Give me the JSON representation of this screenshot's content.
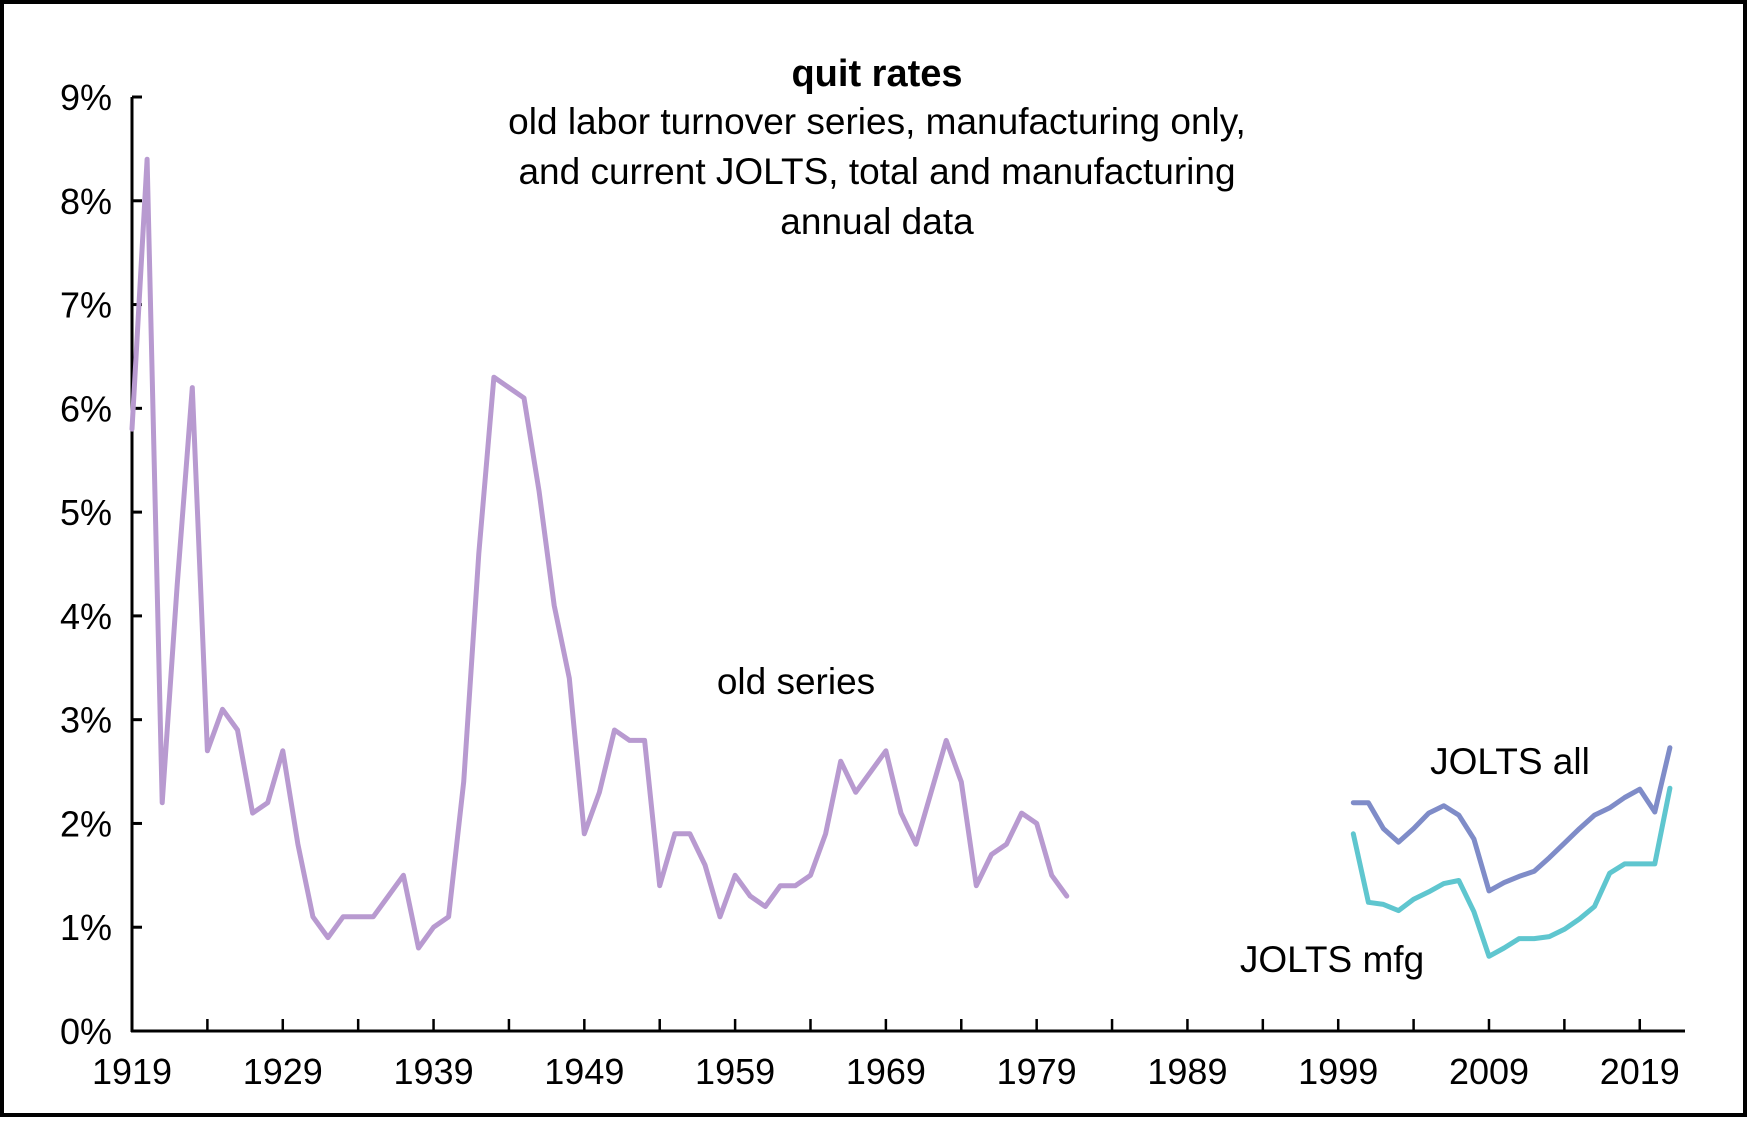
{
  "chart_data": {
    "type": "line",
    "title": "quit rates",
    "subtitle_lines": [
      "old labor turnover series, manufacturing only,",
      "and current JOLTS, total and manufacturing",
      "annual data"
    ],
    "xlabel": "",
    "ylabel": "",
    "xlim": [
      1919,
      2022
    ],
    "ylim": [
      0,
      9
    ],
    "x_ticks": [
      1919,
      1929,
      1939,
      1949,
      1959,
      1969,
      1979,
      1989,
      1999,
      2009,
      2019
    ],
    "y_ticks": [
      0,
      1,
      2,
      3,
      4,
      5,
      6,
      7,
      8,
      9
    ],
    "y_tick_labels": [
      "0%",
      "1%",
      "2%",
      "3%",
      "4%",
      "5%",
      "6%",
      "7%",
      "8%",
      "9%"
    ],
    "grid": false,
    "series": [
      {
        "name": "old series",
        "color": "#b89ad0",
        "x": [
          1919,
          1920,
          1921,
          1922,
          1923,
          1924,
          1925,
          1926,
          1927,
          1928,
          1929,
          1930,
          1931,
          1932,
          1933,
          1934,
          1935,
          1936,
          1937,
          1938,
          1939,
          1940,
          1941,
          1942,
          1943,
          1944,
          1945,
          1946,
          1947,
          1948,
          1949,
          1950,
          1951,
          1952,
          1953,
          1954,
          1955,
          1956,
          1957,
          1958,
          1959,
          1960,
          1961,
          1962,
          1963,
          1964,
          1965,
          1966,
          1967,
          1968,
          1969,
          1970,
          1971,
          1972,
          1973,
          1974,
          1975,
          1976,
          1977,
          1978,
          1979,
          1980,
          1981
        ],
        "values": [
          5.8,
          8.4,
          2.2,
          4.3,
          6.2,
          2.7,
          3.1,
          2.9,
          2.1,
          2.2,
          2.7,
          1.8,
          1.1,
          0.9,
          1.1,
          1.1,
          1.1,
          1.3,
          1.5,
          0.8,
          1.0,
          1.1,
          2.4,
          4.6,
          6.3,
          6.2,
          6.1,
          5.2,
          4.1,
          3.4,
          1.9,
          2.3,
          2.9,
          2.8,
          2.8,
          1.4,
          1.9,
          1.9,
          1.6,
          1.1,
          1.5,
          1.3,
          1.2,
          1.4,
          1.4,
          1.5,
          1.9,
          2.6,
          2.3,
          2.5,
          2.7,
          2.1,
          1.8,
          2.3,
          2.8,
          2.4,
          1.4,
          1.7,
          1.8,
          2.1,
          2.0,
          1.5,
          1.3
        ]
      },
      {
        "name": "JOLTS all",
        "color": "#7f8cc8",
        "x": [
          2000,
          2001,
          2002,
          2003,
          2004,
          2005,
          2006,
          2007,
          2008,
          2009,
          2010,
          2011,
          2012,
          2013,
          2014,
          2015,
          2016,
          2017,
          2018,
          2019,
          2020,
          2021
        ],
        "values": [
          2.2,
          2.2,
          1.95,
          1.82,
          1.95,
          2.1,
          2.17,
          2.08,
          1.85,
          1.35,
          1.43,
          1.49,
          1.54,
          1.67,
          1.81,
          1.95,
          2.08,
          2.15,
          2.25,
          2.33,
          2.11,
          2.73
        ]
      },
      {
        "name": "JOLTS mfg",
        "color": "#5fc6cf",
        "x": [
          2000,
          2001,
          2002,
          2003,
          2004,
          2005,
          2006,
          2007,
          2008,
          2009,
          2010,
          2011,
          2012,
          2013,
          2014,
          2015,
          2016,
          2017,
          2018,
          2019,
          2020,
          2021
        ],
        "values": [
          1.9,
          1.24,
          1.22,
          1.16,
          1.27,
          1.34,
          1.42,
          1.45,
          1.15,
          0.72,
          0.8,
          0.89,
          0.89,
          0.91,
          0.98,
          1.08,
          1.2,
          1.52,
          1.61,
          1.61,
          1.61,
          2.34
        ]
      }
    ],
    "annotations": [
      {
        "text": "old series",
        "series": "old series"
      },
      {
        "text": "JOLTS all",
        "series": "JOLTS all"
      },
      {
        "text": "JOLTS mfg",
        "series": "JOLTS mfg"
      }
    ]
  }
}
